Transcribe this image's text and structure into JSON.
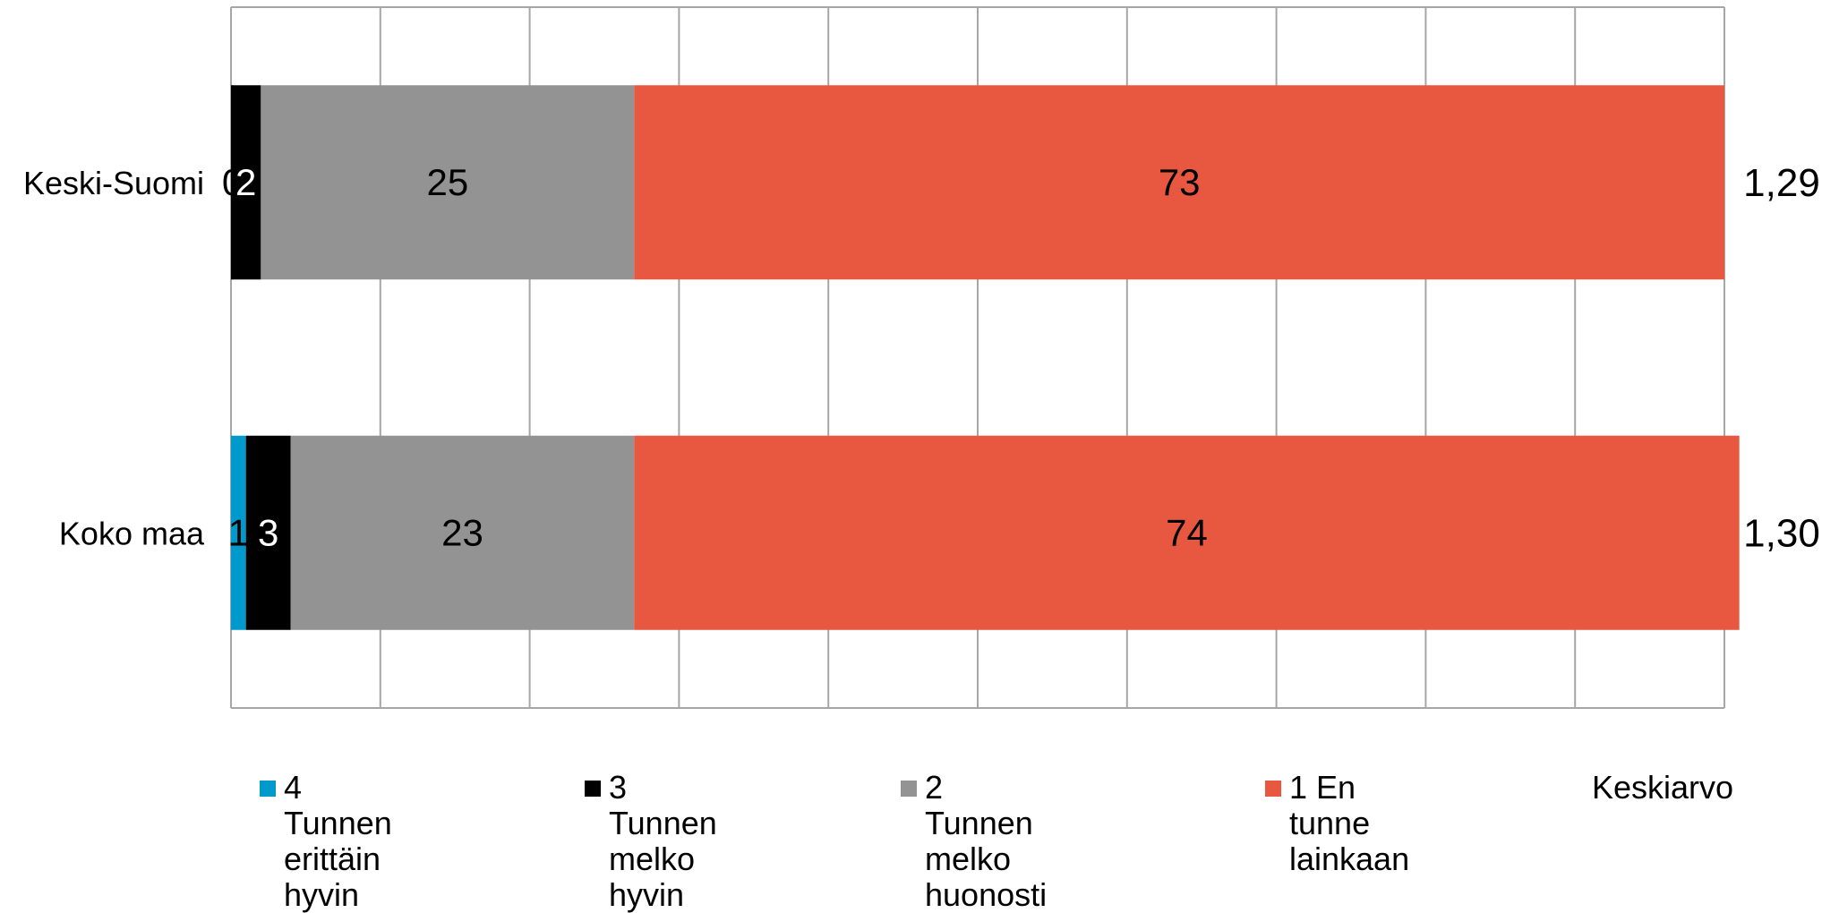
{
  "chart_data": {
    "type": "bar",
    "orientation": "horizontal",
    "stacked": true,
    "categories": [
      "Keski-Suomi",
      "Koko maa"
    ],
    "series": [
      {
        "name": "4 Tunnen\nerittäin hyvin",
        "color": "#0099cc",
        "values": [
          0,
          1
        ],
        "labels": [
          "0",
          "1"
        ]
      },
      {
        "name": "3 Tunnen\nmelko hyvin",
        "color": "#000000",
        "values": [
          2,
          3
        ],
        "labels": [
          "2",
          "3"
        ]
      },
      {
        "name": "2 Tunnen\nmelko huonosti",
        "color": "#939393",
        "values": [
          25,
          23
        ],
        "labels": [
          "25",
          "23"
        ]
      },
      {
        "name": "1 En tunne\nlainkaan",
        "color": "#e85840",
        "values": [
          73,
          74
        ],
        "labels": [
          "73",
          "74"
        ]
      }
    ],
    "mean": {
      "name": "Keskiarvo",
      "values": [
        "1,29",
        "1,30"
      ]
    },
    "xlim": [
      0,
      100
    ],
    "gridlines": 10,
    "legend_position": "bottom"
  }
}
